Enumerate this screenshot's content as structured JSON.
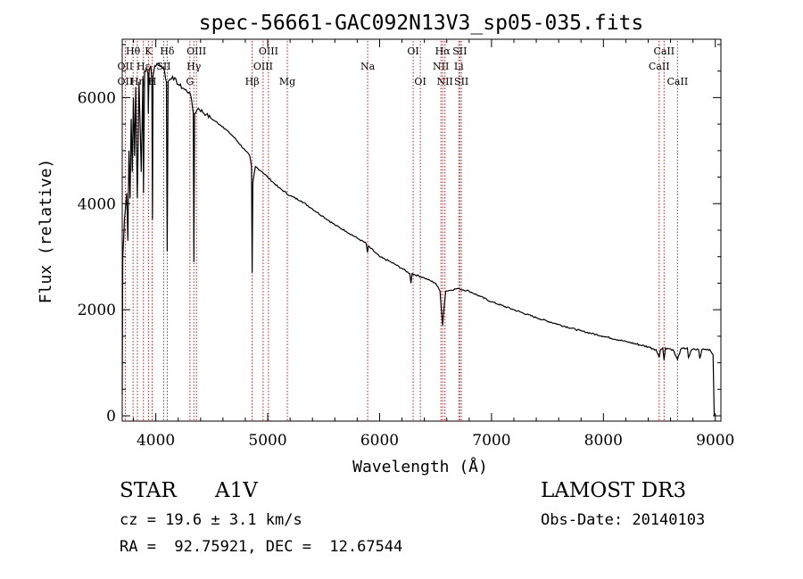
{
  "chart_data": {
    "type": "line",
    "title": "spec-56661-GAC092N13V3_sp05-035.fits",
    "xlabel": "Wavelength (Å)",
    "ylabel": "Flux (relative)",
    "xlim": [
      3700,
      9050
    ],
    "ylim": [
      -100,
      7100
    ],
    "xticks": [
      4000,
      5000,
      6000,
      7000,
      8000,
      9000
    ],
    "xtick_labels": [
      "4000",
      "5000",
      "6000",
      "7000",
      "8000",
      "9000"
    ],
    "yticks": [
      0,
      2000,
      4000,
      6000
    ],
    "ytick_labels": [
      "0",
      "2000",
      "4000",
      "6000"
    ],
    "grid": false,
    "series": [
      {
        "name": "Flux",
        "color": "#000000",
        "points": [
          [
            3700,
            400
          ],
          [
            3705,
            3000
          ],
          [
            3720,
            3700
          ],
          [
            3740,
            4200
          ],
          [
            3750,
            3300
          ],
          [
            3760,
            5000
          ],
          [
            3770,
            4100
          ],
          [
            3780,
            5600
          ],
          [
            3790,
            4600
          ],
          [
            3800,
            6000
          ],
          [
            3810,
            4900
          ],
          [
            3820,
            6200
          ],
          [
            3835,
            4100
          ],
          [
            3850,
            6300
          ],
          [
            3870,
            4600
          ],
          [
            3885,
            6400
          ],
          [
            3890,
            4200
          ],
          [
            3900,
            6500
          ],
          [
            3915,
            6550
          ],
          [
            3930,
            6450
          ],
          [
            3933,
            5700
          ],
          [
            3940,
            6500
          ],
          [
            3955,
            6600
          ],
          [
            3965,
            6300
          ],
          [
            3970,
            3700
          ],
          [
            3975,
            6400
          ],
          [
            3990,
            6600
          ],
          [
            4030,
            6640
          ],
          [
            4070,
            6560
          ],
          [
            4095,
            6300
          ],
          [
            4102,
            3100
          ],
          [
            4110,
            6300
          ],
          [
            4150,
            6400
          ],
          [
            4200,
            6250
          ],
          [
            4260,
            6150
          ],
          [
            4300,
            6100
          ],
          [
            4320,
            5950
          ],
          [
            4335,
            5700
          ],
          [
            4340,
            2900
          ],
          [
            4347,
            5700
          ],
          [
            4380,
            5800
          ],
          [
            4450,
            5680
          ],
          [
            4500,
            5600
          ],
          [
            4600,
            5450
          ],
          [
            4700,
            5250
          ],
          [
            4800,
            5000
          ],
          [
            4840,
            4900
          ],
          [
            4855,
            4700
          ],
          [
            4861,
            2700
          ],
          [
            4867,
            4400
          ],
          [
            4890,
            4700
          ],
          [
            4950,
            4600
          ],
          [
            5000,
            4500
          ],
          [
            5100,
            4300
          ],
          [
            5200,
            4150
          ],
          [
            5300,
            4050
          ],
          [
            5400,
            3900
          ],
          [
            5500,
            3750
          ],
          [
            5600,
            3600
          ],
          [
            5700,
            3480
          ],
          [
            5800,
            3350
          ],
          [
            5880,
            3250
          ],
          [
            5892,
            3080
          ],
          [
            5900,
            3200
          ],
          [
            6000,
            3000
          ],
          [
            6100,
            2900
          ],
          [
            6200,
            2780
          ],
          [
            6270,
            2680
          ],
          [
            6280,
            2500
          ],
          [
            6290,
            2680
          ],
          [
            6400,
            2600
          ],
          [
            6500,
            2500
          ],
          [
            6540,
            2350
          ],
          [
            6556,
            1900
          ],
          [
            6563,
            1700
          ],
          [
            6570,
            1900
          ],
          [
            6590,
            2350
          ],
          [
            6700,
            2400
          ],
          [
            6800,
            2350
          ],
          [
            6900,
            2250
          ],
          [
            7000,
            2150
          ],
          [
            7200,
            2000
          ],
          [
            7400,
            1850
          ],
          [
            7600,
            1720
          ],
          [
            7800,
            1600
          ],
          [
            8000,
            1500
          ],
          [
            8200,
            1400
          ],
          [
            8400,
            1300
          ],
          [
            8470,
            1250
          ],
          [
            8498,
            1100
          ],
          [
            8510,
            1250
          ],
          [
            8530,
            1280
          ],
          [
            8542,
            1050
          ],
          [
            8555,
            1280
          ],
          [
            8600,
            1260
          ],
          [
            8620,
            1250
          ],
          [
            8662,
            1060
          ],
          [
            8690,
            1250
          ],
          [
            8750,
            1280
          ],
          [
            8760,
            1100
          ],
          [
            8790,
            1250
          ],
          [
            8850,
            1250
          ],
          [
            8862,
            1080
          ],
          [
            8880,
            1250
          ],
          [
            8950,
            1250
          ],
          [
            8980,
            1150
          ],
          [
            8990,
            0
          ]
        ]
      }
    ],
    "line_markers": [
      {
        "label": "Hθ",
        "x": 3797,
        "row": 1
      },
      {
        "label": "Hη",
        "x": 3835,
        "row": 3
      },
      {
        "label": "OII",
        "x": 3727,
        "row": 2
      },
      {
        "label": "OII",
        "x": 3727,
        "row": 3
      },
      {
        "label": "Hε",
        "x": 3889,
        "row": 2
      },
      {
        "label": "K",
        "x": 3934,
        "row": 1
      },
      {
        "label": "H",
        "x": 3968,
        "row": 3
      },
      {
        "label": "SII",
        "x": 4070,
        "row": 2
      },
      {
        "label": "Hδ",
        "x": 4102,
        "row": 1
      },
      {
        "label": "OIII",
        "x": 4363,
        "row": 1
      },
      {
        "label": "Hγ",
        "x": 4340,
        "row": 2
      },
      {
        "label": "G",
        "x": 4305,
        "row": 3
      },
      {
        "label": "Hβ",
        "x": 4861,
        "row": 3
      },
      {
        "label": "OIII",
        "x": 5007,
        "row": 1
      },
      {
        "label": "OIII",
        "x": 4959,
        "row": 2
      },
      {
        "label": "Mg",
        "x": 5175,
        "row": 3
      },
      {
        "label": "Na",
        "x": 5893,
        "row": 2
      },
      {
        "label": "OI",
        "x": 6300,
        "row": 1
      },
      {
        "label": "OI",
        "x": 6364,
        "row": 3
      },
      {
        "label": "Hα",
        "x": 6563,
        "row": 1
      },
      {
        "label": "NII",
        "x": 6548,
        "row": 2
      },
      {
        "label": "NII",
        "x": 6584,
        "row": 3
      },
      {
        "label": "SII",
        "x": 6717,
        "row": 1
      },
      {
        "label": "Li",
        "x": 6708,
        "row": 2
      },
      {
        "label": "SII",
        "x": 6731,
        "row": 3
      },
      {
        "label": "CaII",
        "x": 8542,
        "row": 1
      },
      {
        "label": "CaII",
        "x": 8498,
        "row": 2
      },
      {
        "label": "CaII",
        "x": 8662,
        "row": 3
      }
    ]
  },
  "info": {
    "object_class": "STAR",
    "subclass": "A1V",
    "survey": "LAMOST DR3",
    "cz": "cz = 19.6 ± 3.1 km/s",
    "obs_date": "Obs-Date: 20140103",
    "radec": "RA =  92.75921, DEC =  12.67544"
  },
  "colors": {
    "axis": "#000000",
    "spectrum": "#000000",
    "marker_line": "#b22222",
    "text": "#000000"
  }
}
